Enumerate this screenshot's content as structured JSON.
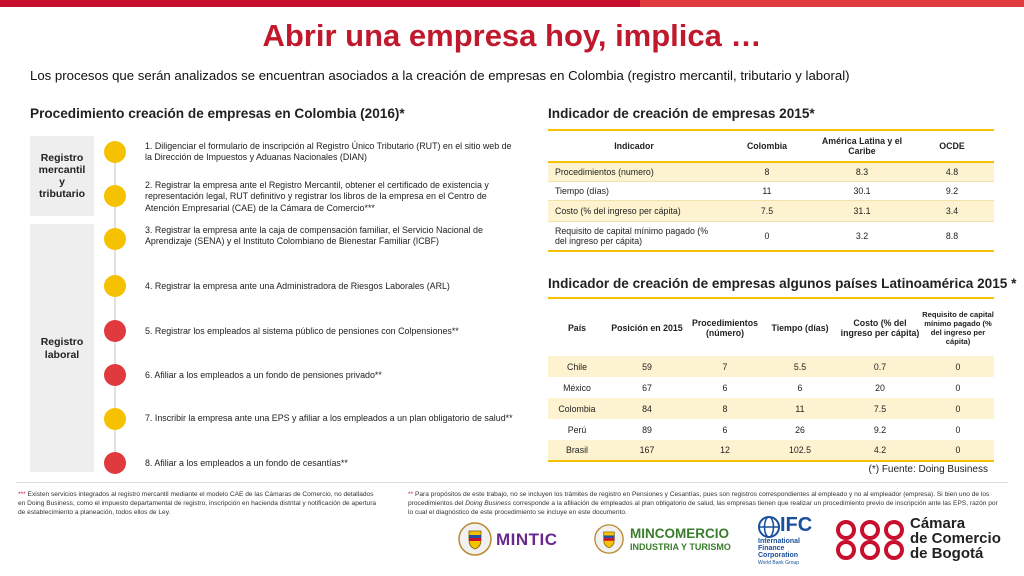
{
  "title": "Abrir una empresa hoy, implica …",
  "subtitle": "Los procesos que serán analizados se encuentran asociados a la creación de empresas en Colombia (registro mercantil, tributario y laboral)",
  "procedure": {
    "heading": "Procedimiento creación de empresas en Colombia (2016)*",
    "group1": [
      "Registro",
      "mercantil",
      "y",
      "tributario"
    ],
    "group2": [
      "Registro",
      "laboral"
    ],
    "steps": [
      "1. Diligenciar el formulario de inscripción al Registro Único Tributario (RUT) en el sitio web de la Dirección de Impuestos y Aduanas Nacionales (DIAN)",
      "2. Registrar la empresa ante el Registro Mercantil, obtener el certificado de existencia y representación legal, RUT definitivo y registrar los libros de la empresa en el Centro de Atención Empresarial (CAE) de la Cámara de Comercio***",
      "3. Registrar la empresa ante la caja de compensación familiar, el Servicio Nacional de Aprendizaje (SENA) y el Instituto Colombiano de Bienestar Familiar (ICBF)",
      "4. Registrar la empresa ante una Administradora de Riesgos Laborales (ARL)",
      "5. Registrar los empleados al sistema público de pensiones con Colpensiones**",
      "6. Afiliar a los empleados a un fondo de pensiones privado**",
      "7. Inscribir la empresa ante una EPS y afiliar a los empleados a un plan obligatorio de salud**",
      "8. Afiliar a los empleados a un fondo de cesantías**"
    ],
    "dot_colors": [
      "#f5c100",
      "#f5c100",
      "#f5c100",
      "#f5c100",
      "#e03a3e",
      "#e03a3e",
      "#f5c100",
      "#e03a3e"
    ]
  },
  "indicator_table": {
    "heading": "Indicador de creación de empresas 2015*",
    "columns": [
      "Indicador",
      "Colombia",
      "América Latina y el Caribe",
      "OCDE"
    ],
    "rows": [
      [
        "Procedimientos (numero)",
        "8",
        "8.3",
        "4.8"
      ],
      [
        "Tiempo (días)",
        "11",
        "30.1",
        "9.2"
      ],
      [
        "Costo (% del ingreso per cápita)",
        "7.5",
        "31.1",
        "3.4"
      ],
      [
        "Requisito de capital mínimo pagado (% del ingreso per cápita)",
        "0",
        "3.2",
        "8.8"
      ]
    ]
  },
  "latam_table": {
    "heading": "Indicador de creación de empresas algunos países Latinoamérica 2015 *",
    "columns": [
      "País",
      "Posición en 2015",
      "Procedimientos (número)",
      "Tiempo (días)",
      "Costo (% del ingreso per cápita)",
      "Requisito de capital mínimo pagado (% del ingreso per cápita)"
    ],
    "rows": [
      [
        "Chile",
        "59",
        "7",
        "5.5",
        "0.7",
        "0"
      ],
      [
        "México",
        "67",
        "6",
        "6",
        "20",
        "0"
      ],
      [
        "Colombia",
        "84",
        "8",
        "11",
        "7.5",
        "0"
      ],
      [
        "Perú",
        "89",
        "6",
        "26",
        "9.2",
        "0"
      ],
      [
        "Brasil",
        "167",
        "12",
        "102.5",
        "4.2",
        "0"
      ]
    ],
    "source": "(*) Fuente: Doing Business"
  },
  "footnotes": {
    "left_star": "***",
    "left": "Existen servicios integrados al registro mercantil mediante el modelo CAE de las Cámaras de Comercio, no detallados en Doing Business, como el impuesto departamental de registro, inscripción en hacienda distrital y notificación de apertura de establecimiento a planeación, todos ellos de Ley.",
    "right_star": "**",
    "right_a": "Para propósitos de este trabajo, no se incluyen los trámites de registro en Pensiones y Cesantías, pues son registros correspondientes al empleado y no al empleador (empresa). Si bien uno de los procedimientos del ",
    "right_em": "Doing Business",
    "right_b": " corresponde a la afiliación de empleados al plan obligatorio de salud, las empresas tienen que realizar un procedimiento previo de inscripción ante las EPS, razón por lo cual el diagnóstico de este procedimiento se incluye en este documento."
  },
  "logos": {
    "mintic": "MINTIC",
    "mincomercio_1": "MINCOMERCIO",
    "mincomercio_2": "INDUSTRIA Y TURISMO",
    "ifc_1": "IFC",
    "ifc_2": "International",
    "ifc_3": "Finance",
    "ifc_4": "Corporation",
    "ifc_5": "World Bank Group",
    "ccb_1": "Cámara",
    "ccb_2": "de Comercio",
    "ccb_3": "de Bogotá"
  },
  "colors": {
    "brand_red": "#c0182d",
    "accent_yellow": "#f5c100",
    "accent_red": "#e03a3e",
    "row_shade": "#fdf3d0"
  }
}
